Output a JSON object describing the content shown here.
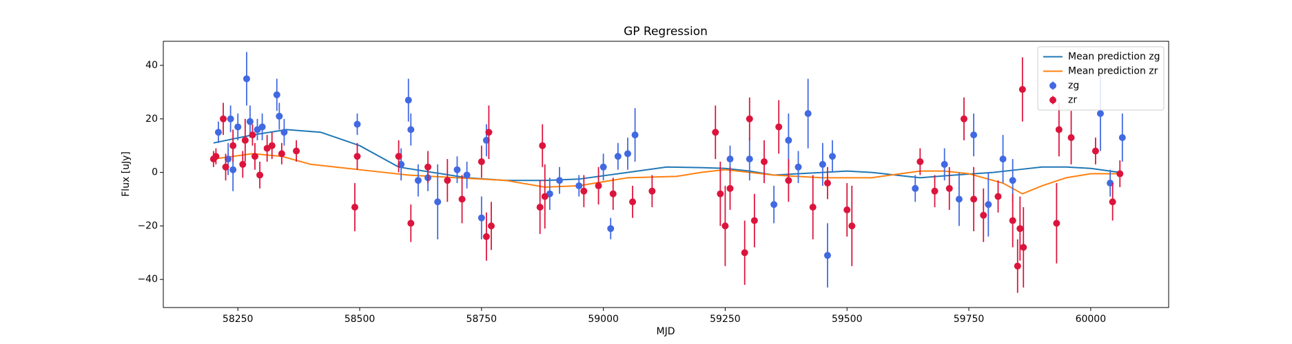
{
  "chart_data": {
    "type": "scatter",
    "title": "GP Regression",
    "x_label": "MJD",
    "y_label": "Flux [uJy]",
    "xlim": [
      58097,
      60160
    ],
    "ylim": [
      -50.5,
      49
    ],
    "xticks": [
      58250,
      58500,
      58750,
      59000,
      59250,
      59500,
      59750,
      60000
    ],
    "yticks": [
      {
        "value": -40,
        "label": "−40"
      },
      {
        "value": -20,
        "label": "−20"
      },
      0,
      20,
      40
    ],
    "legend": "upper right",
    "series": [
      {
        "name": "Mean prediction zg",
        "type": "line",
        "color": "#1f77b4",
        "x": [
          58200,
          58280,
          58350,
          58420,
          58500,
          58580,
          58650,
          58720,
          58800,
          58880,
          58950,
          59050,
          59130,
          59200,
          59250,
          59300,
          59350,
          59400,
          59450,
          59500,
          59550,
          59600,
          59650,
          59720,
          59800,
          59850,
          59900,
          59950,
          60000,
          60060
        ],
        "values": [
          11,
          14,
          16,
          15,
          10,
          2,
          0,
          -2,
          -3,
          -3,
          -2.5,
          0,
          2,
          1.8,
          1.5,
          0.5,
          -1,
          -0.5,
          0,
          0.5,
          0,
          -1,
          -2,
          -1,
          0,
          1,
          2,
          2,
          1.5,
          0
        ]
      },
      {
        "name": "Mean prediction zr",
        "type": "line",
        "color": "#ff7f0e",
        "x": [
          58200,
          58280,
          58340,
          58400,
          58500,
          58600,
          58700,
          58800,
          58880,
          58950,
          59050,
          59150,
          59200,
          59250,
          59350,
          59450,
          59550,
          59650,
          59700,
          59750,
          59820,
          59860,
          59900,
          59950,
          60000,
          60060
        ],
        "values": [
          5,
          7,
          6,
          3,
          1,
          -1,
          -2,
          -3,
          -5.5,
          -5,
          -2,
          -1.5,
          0,
          1,
          -1,
          -2,
          -2,
          0.5,
          0.5,
          -0.5,
          -4,
          -8,
          -5,
          -2,
          -0.5,
          -0.5
        ]
      },
      {
        "name": "zg",
        "type": "errorbar",
        "color": "#4169e1",
        "x": [
          58210,
          58230,
          58235,
          58240,
          58250,
          58268,
          58275,
          58290,
          58300,
          58330,
          58335,
          58345,
          58495,
          58585,
          58600,
          58605,
          58620,
          58640,
          58660,
          58700,
          58720,
          58750,
          58760,
          58890,
          58910,
          58950,
          59000,
          59015,
          59030,
          59050,
          59065,
          59260,
          59300,
          59350,
          59380,
          59400,
          59420,
          59450,
          59460,
          59470,
          59640,
          59700,
          59730,
          59760,
          59790,
          59820,
          59840,
          60020,
          60040,
          60065
        ],
        "values": [
          15,
          5,
          20,
          1,
          17,
          35,
          19,
          16,
          17,
          29,
          21,
          15,
          18,
          3,
          27,
          16,
          -3,
          -2,
          -11,
          1,
          -1,
          -17,
          12,
          -8,
          -3,
          -5,
          2,
          -21,
          6,
          7,
          14,
          5,
          5,
          -12,
          12,
          2,
          22,
          3,
          -31,
          6,
          -6,
          3,
          -10,
          14,
          -12,
          5,
          -3,
          22,
          -4,
          13
        ],
        "errors": [
          4,
          6,
          5,
          8,
          5,
          10,
          6,
          4,
          5,
          6,
          5,
          5,
          4,
          6,
          8,
          6,
          6,
          5,
          14,
          5,
          5,
          8,
          6,
          6,
          5,
          4,
          5,
          4,
          5,
          6,
          10,
          5,
          8,
          7,
          10,
          6,
          13,
          8,
          12,
          6,
          5,
          6,
          10,
          8,
          12,
          9,
          8,
          14,
          5,
          9
        ]
      },
      {
        "name": "zr",
        "type": "errorbar",
        "color": "#dc143c",
        "x": [
          58200,
          58205,
          58220,
          58225,
          58240,
          58260,
          58265,
          58280,
          58285,
          58295,
          58310,
          58320,
          58340,
          58370,
          58490,
          58495,
          58580,
          58605,
          58640,
          58680,
          58710,
          58750,
          58760,
          58765,
          58770,
          58870,
          58875,
          58880,
          58960,
          58990,
          59020,
          59060,
          59100,
          59230,
          59240,
          59250,
          59260,
          59290,
          59300,
          59310,
          59330,
          59360,
          59380,
          59430,
          59460,
          59500,
          59510,
          59650,
          59680,
          59710,
          59740,
          59760,
          59780,
          59810,
          59840,
          59850,
          59855,
          59860,
          59862,
          59930,
          59935,
          59960,
          60010,
          60045,
          60060
        ],
        "values": [
          5,
          6,
          20,
          2,
          10,
          3,
          12,
          14,
          6,
          -1,
          9,
          10,
          7,
          8,
          -13,
          6,
          6,
          -19,
          2,
          -3,
          -10,
          4,
          -24,
          15,
          -20,
          -13,
          10,
          -9,
          -7,
          -5,
          -8,
          -11,
          -7,
          15,
          -8,
          -20,
          -6,
          -30,
          20,
          -18,
          4,
          17,
          -3,
          -13,
          -4,
          -14,
          -20,
          4,
          -7,
          -6,
          20,
          -10,
          -16,
          -9,
          -18,
          -35,
          -21,
          31,
          -28,
          -19,
          16,
          13,
          8,
          -11,
          -0.5
        ],
        "errors": [
          3,
          3,
          6,
          5,
          6,
          5,
          8,
          4,
          5,
          5,
          5,
          5,
          4,
          4,
          9,
          5,
          6,
          7,
          6,
          8,
          9,
          6,
          9,
          10,
          9,
          10,
          8,
          12,
          6,
          7,
          6,
          6,
          6,
          10,
          12,
          15,
          8,
          12,
          8,
          10,
          8,
          10,
          8,
          12,
          6,
          10,
          15,
          5,
          6,
          8,
          8,
          12,
          10,
          6,
          10,
          10,
          12,
          12,
          15,
          15,
          10,
          10,
          5,
          7,
          5
        ]
      }
    ]
  }
}
